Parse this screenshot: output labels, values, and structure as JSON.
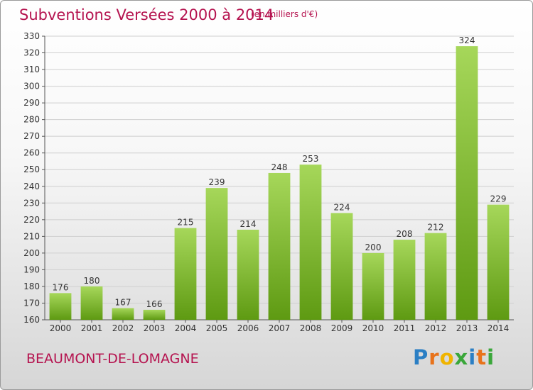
{
  "header": {
    "title": "Subventions Versées 2000 à 2014",
    "subtitle": "(en milliers d'€)"
  },
  "footer": {
    "city": "BEAUMONT-DE-LOMAGNE",
    "logo_text": "Proxiti",
    "logo_colors": [
      "#2b7fc4",
      "#e8731b",
      "#f0b400",
      "#3aa73a",
      "#2b7fc4",
      "#e8731b",
      "#3aa73a"
    ]
  },
  "chart_data": {
    "type": "bar",
    "title": "Subventions Versées 2000 à 2014",
    "subtitle": "(en milliers d'€)",
    "xlabel": "",
    "ylabel": "",
    "categories": [
      "2000",
      "2001",
      "2002",
      "2003",
      "2004",
      "2005",
      "2006",
      "2007",
      "2008",
      "2009",
      "2010",
      "2011",
      "2012",
      "2013",
      "2014"
    ],
    "values": [
      176,
      180,
      167,
      166,
      215,
      239,
      214,
      248,
      253,
      224,
      200,
      208,
      212,
      324,
      229
    ],
    "ylim": [
      160,
      330
    ],
    "ytick_step": 10,
    "grid": "horizontal",
    "bar_color_light": "#a6d75a",
    "bar_color_dark": "#5e9a12",
    "grid_color": "#cfcfcf"
  }
}
